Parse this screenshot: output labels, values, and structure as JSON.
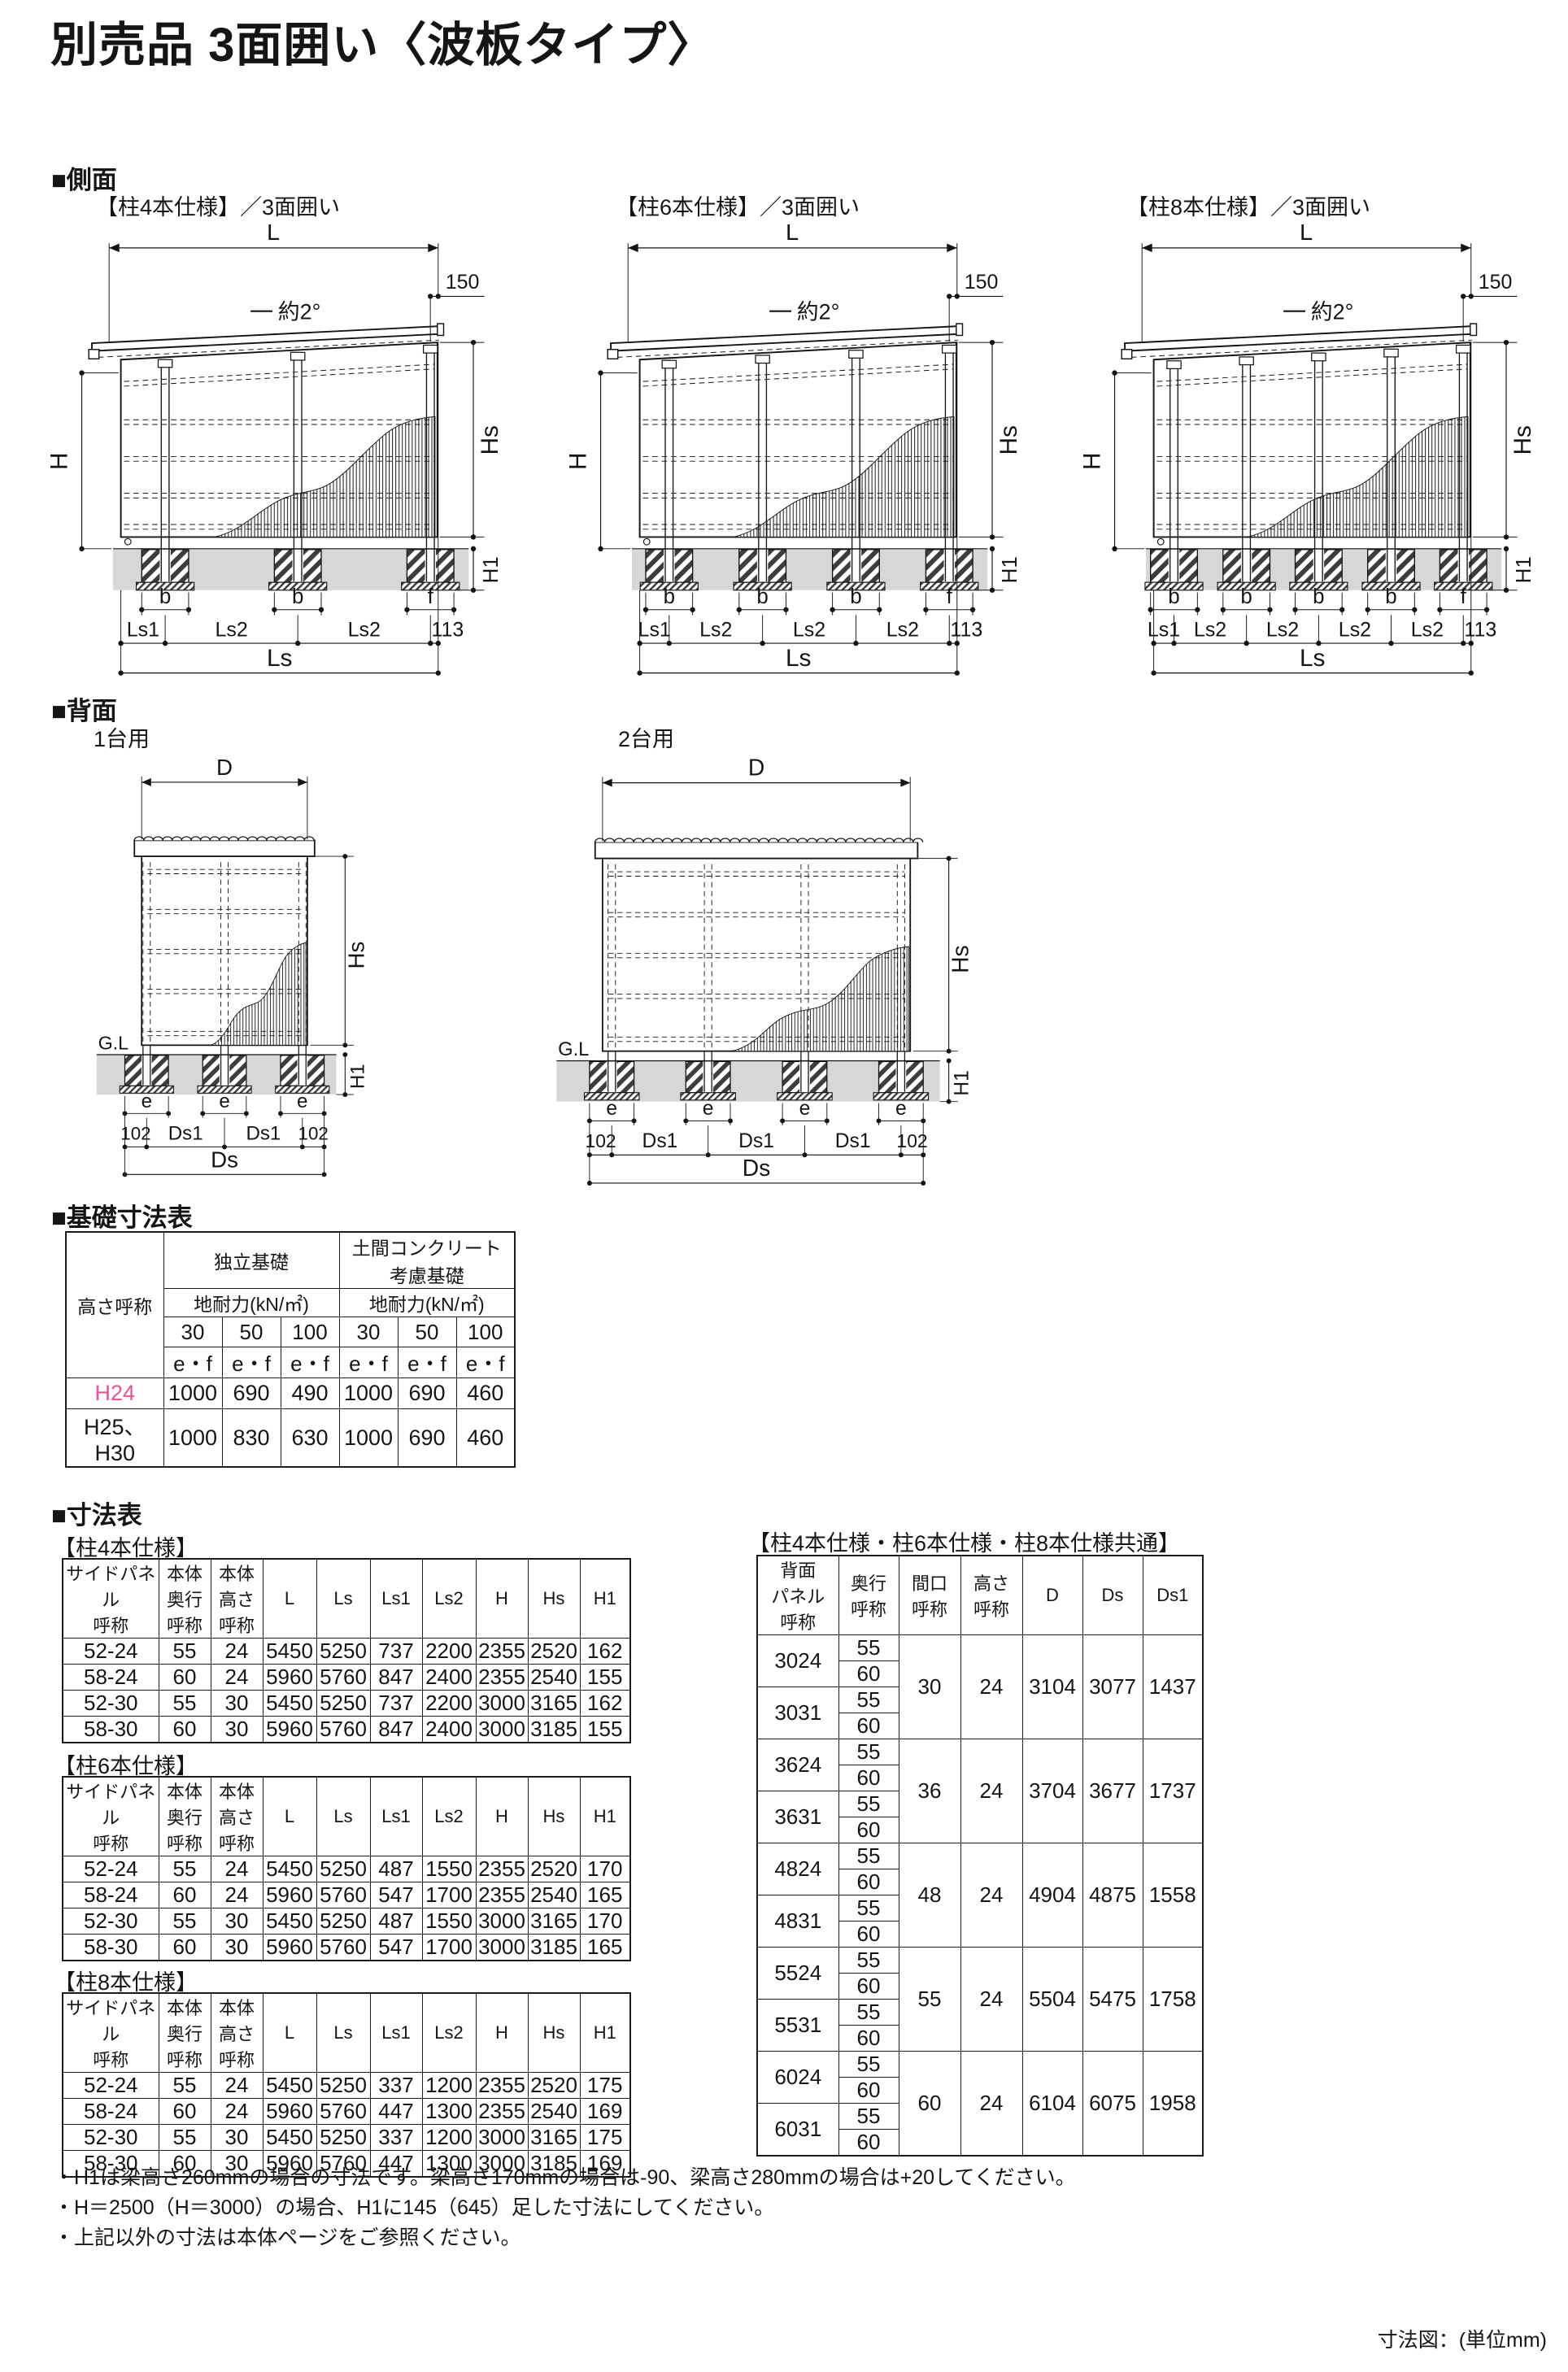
{
  "page": {
    "title": "別売品 3面囲い〈波板タイプ〉",
    "unit_note": "寸法図：(単位mm)"
  },
  "side_section": {
    "heading": "■側面",
    "captions": [
      "【柱4本仕様】／3面囲い",
      "【柱6本仕様】／3面囲い",
      "【柱8本仕様】／3面囲い"
    ]
  },
  "back_section": {
    "heading": "■背面",
    "captions": [
      "1台用",
      "2台用"
    ]
  },
  "dim_labels": {
    "L": "L",
    "roof_offset": "150",
    "slope": "約2°",
    "H": "H",
    "Hs": "Hs",
    "H1": "H1",
    "b": "b",
    "f": "f",
    "Ls1": "Ls1",
    "Ls2": "Ls2",
    "end113": "113",
    "Ls": "Ls",
    "D": "D",
    "GL": "G.L",
    "e": "e",
    "end102": "102",
    "Ds1": "Ds1",
    "Ds": "Ds"
  },
  "foundation": {
    "heading": "■基礎寸法表",
    "height_col": "高さ呼称",
    "independent": "独立基礎",
    "slab": "土間コンクリート\n考慮基礎",
    "bearing": "地耐力(kN/㎡)",
    "loads": [
      "30",
      "50",
      "100"
    ],
    "ef": "e・f",
    "rows": [
      {
        "name": "H24",
        "values": [
          "1000",
          "690",
          "490",
          "1000",
          "690",
          "460"
        ]
      },
      {
        "name": "H25、H30",
        "values": [
          "1000",
          "830",
          "630",
          "1000",
          "690",
          "460"
        ]
      }
    ]
  },
  "dims": {
    "heading": "■寸法表",
    "headers": [
      "サイドパネル\n呼称",
      "本体\n奥行\n呼称",
      "本体\n高さ\n呼称",
      "L",
      "Ls",
      "Ls1",
      "Ls2",
      "H",
      "Hs",
      "H1"
    ],
    "tables": [
      {
        "caption": "【柱4本仕様】",
        "rows": [
          [
            "52-24",
            "55",
            "24",
            "5450",
            "5250",
            "737",
            "2200",
            "2355",
            "2520",
            "162"
          ],
          [
            "58-24",
            "60",
            "24",
            "5960",
            "5760",
            "847",
            "2400",
            "2355",
            "2540",
            "155"
          ],
          [
            "52-30",
            "55",
            "30",
            "5450",
            "5250",
            "737",
            "2200",
            "3000",
            "3165",
            "162"
          ],
          [
            "58-30",
            "60",
            "30",
            "5960",
            "5760",
            "847",
            "2400",
            "3000",
            "3185",
            "155"
          ]
        ]
      },
      {
        "caption": "【柱6本仕様】",
        "rows": [
          [
            "52-24",
            "55",
            "24",
            "5450",
            "5250",
            "487",
            "1550",
            "2355",
            "2520",
            "170"
          ],
          [
            "58-24",
            "60",
            "24",
            "5960",
            "5760",
            "547",
            "1700",
            "2355",
            "2540",
            "165"
          ],
          [
            "52-30",
            "55",
            "30",
            "5450",
            "5250",
            "487",
            "1550",
            "3000",
            "3165",
            "170"
          ],
          [
            "58-30",
            "60",
            "30",
            "5960",
            "5760",
            "547",
            "1700",
            "3000",
            "3185",
            "165"
          ]
        ]
      },
      {
        "caption": "【柱8本仕様】",
        "rows": [
          [
            "52-24",
            "55",
            "24",
            "5450",
            "5250",
            "337",
            "1200",
            "2355",
            "2520",
            "175"
          ],
          [
            "58-24",
            "60",
            "24",
            "5960",
            "5760",
            "447",
            "1300",
            "2355",
            "2540",
            "169"
          ],
          [
            "52-30",
            "55",
            "30",
            "5450",
            "5250",
            "337",
            "1200",
            "3000",
            "3165",
            "175"
          ],
          [
            "58-30",
            "60",
            "30",
            "5960",
            "5760",
            "447",
            "1300",
            "3000",
            "3185",
            "169"
          ]
        ]
      }
    ],
    "common": {
      "caption": "【柱4本仕様・柱6本仕様・柱8本仕様共通】",
      "headers": [
        "背面\nパネル\n呼称",
        "奥行\n呼称",
        "間口\n呼称",
        "高さ\n呼称",
        "D",
        "Ds",
        "Ds1"
      ],
      "depths": [
        "55",
        "60"
      ],
      "groups": [
        {
          "names": [
            "3024",
            "3031"
          ],
          "values": [
            "30",
            "24",
            "3104",
            "3077",
            "1437"
          ]
        },
        {
          "names": [
            "3624",
            "3631"
          ],
          "values": [
            "36",
            "24",
            "3704",
            "3677",
            "1737"
          ]
        },
        {
          "names": [
            "4824",
            "4831"
          ],
          "values": [
            "48",
            "24",
            "4904",
            "4875",
            "1558"
          ]
        },
        {
          "names": [
            "5524",
            "5531"
          ],
          "values": [
            "55",
            "24",
            "5504",
            "5475",
            "1758"
          ]
        },
        {
          "names": [
            "6024",
            "6031"
          ],
          "values": [
            "60",
            "24",
            "6104",
            "6075",
            "1958"
          ]
        }
      ]
    },
    "notes": [
      "・H1は梁高さ260mmの場合の寸法です。梁高さ170mmの場合は-90、梁高さ280mmの場合は+20してください。",
      "・H＝2500（H＝3000）の場合、H1に145（645）足した寸法にしてください。",
      "・上記以外の寸法は本体ページをご参照ください。"
    ]
  },
  "colors": {
    "accent_pink": "#e85298",
    "ground_gray": "#d7d7d7"
  }
}
